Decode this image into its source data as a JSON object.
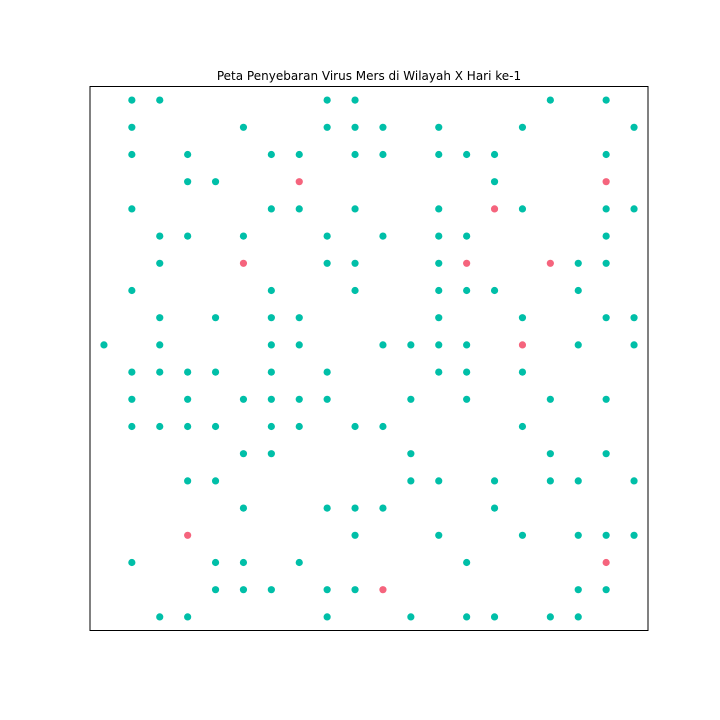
{
  "chart_data": {
    "type": "scatter",
    "title": "Peta Penyebaran Virus Mers di Wilayah X Hari ke-1",
    "xlabel": "",
    "ylabel": "",
    "xlim": [
      -0.5,
      19.5
    ],
    "ylim": [
      -0.5,
      19.5
    ],
    "axis_ticks": false,
    "grid": false,
    "colors": {
      "healthy": "#00bfa8",
      "infected": "#f5647d"
    },
    "series": [
      {
        "key": "healthy",
        "points": [
          [
            1,
            19
          ],
          [
            2,
            19
          ],
          [
            8,
            19
          ],
          [
            9,
            19
          ],
          [
            16,
            19
          ],
          [
            18,
            19
          ],
          [
            1,
            18
          ],
          [
            5,
            18
          ],
          [
            8,
            18
          ],
          [
            9,
            18
          ],
          [
            10,
            18
          ],
          [
            12,
            18
          ],
          [
            15,
            18
          ],
          [
            19,
            18
          ],
          [
            1,
            17
          ],
          [
            3,
            17
          ],
          [
            6,
            17
          ],
          [
            7,
            17
          ],
          [
            9,
            17
          ],
          [
            10,
            17
          ],
          [
            12,
            17
          ],
          [
            13,
            17
          ],
          [
            14,
            17
          ],
          [
            18,
            17
          ],
          [
            3,
            16
          ],
          [
            4,
            16
          ],
          [
            14,
            16
          ],
          [
            1,
            15
          ],
          [
            6,
            15
          ],
          [
            7,
            15
          ],
          [
            9,
            15
          ],
          [
            12,
            15
          ],
          [
            15,
            15
          ],
          [
            18,
            15
          ],
          [
            19,
            15
          ],
          [
            2,
            14
          ],
          [
            3,
            14
          ],
          [
            5,
            14
          ],
          [
            8,
            14
          ],
          [
            10,
            14
          ],
          [
            12,
            14
          ],
          [
            13,
            14
          ],
          [
            18,
            14
          ],
          [
            2,
            13
          ],
          [
            8,
            13
          ],
          [
            9,
            13
          ],
          [
            12,
            13
          ],
          [
            17,
            13
          ],
          [
            18,
            13
          ],
          [
            1,
            12
          ],
          [
            6,
            12
          ],
          [
            9,
            12
          ],
          [
            12,
            12
          ],
          [
            13,
            12
          ],
          [
            14,
            12
          ],
          [
            17,
            12
          ],
          [
            2,
            11
          ],
          [
            4,
            11
          ],
          [
            6,
            11
          ],
          [
            7,
            11
          ],
          [
            12,
            11
          ],
          [
            15,
            11
          ],
          [
            18,
            11
          ],
          [
            19,
            11
          ],
          [
            0,
            10
          ],
          [
            2,
            10
          ],
          [
            6,
            10
          ],
          [
            7,
            10
          ],
          [
            10,
            10
          ],
          [
            11,
            10
          ],
          [
            12,
            10
          ],
          [
            13,
            10
          ],
          [
            17,
            10
          ],
          [
            19,
            10
          ],
          [
            1,
            9
          ],
          [
            2,
            9
          ],
          [
            3,
            9
          ],
          [
            4,
            9
          ],
          [
            6,
            9
          ],
          [
            8,
            9
          ],
          [
            12,
            9
          ],
          [
            13,
            9
          ],
          [
            15,
            9
          ],
          [
            1,
            8
          ],
          [
            3,
            8
          ],
          [
            5,
            8
          ],
          [
            6,
            8
          ],
          [
            7,
            8
          ],
          [
            8,
            8
          ],
          [
            11,
            8
          ],
          [
            13,
            8
          ],
          [
            16,
            8
          ],
          [
            18,
            8
          ],
          [
            1,
            7
          ],
          [
            2,
            7
          ],
          [
            3,
            7
          ],
          [
            4,
            7
          ],
          [
            6,
            7
          ],
          [
            7,
            7
          ],
          [
            9,
            7
          ],
          [
            10,
            7
          ],
          [
            15,
            7
          ],
          [
            5,
            6
          ],
          [
            6,
            6
          ],
          [
            11,
            6
          ],
          [
            16,
            6
          ],
          [
            18,
            6
          ],
          [
            3,
            5
          ],
          [
            4,
            5
          ],
          [
            11,
            5
          ],
          [
            12,
            5
          ],
          [
            14,
            5
          ],
          [
            16,
            5
          ],
          [
            17,
            5
          ],
          [
            19,
            5
          ],
          [
            5,
            4
          ],
          [
            8,
            4
          ],
          [
            9,
            4
          ],
          [
            10,
            4
          ],
          [
            14,
            4
          ],
          [
            9,
            3
          ],
          [
            12,
            3
          ],
          [
            15,
            3
          ],
          [
            17,
            3
          ],
          [
            18,
            3
          ],
          [
            19,
            3
          ],
          [
            1,
            2
          ],
          [
            4,
            2
          ],
          [
            5,
            2
          ],
          [
            7,
            2
          ],
          [
            13,
            2
          ],
          [
            4,
            1
          ],
          [
            5,
            1
          ],
          [
            6,
            1
          ],
          [
            8,
            1
          ],
          [
            9,
            1
          ],
          [
            17,
            1
          ],
          [
            18,
            1
          ],
          [
            2,
            0
          ],
          [
            3,
            0
          ],
          [
            8,
            0
          ],
          [
            11,
            0
          ],
          [
            13,
            0
          ],
          [
            14,
            0
          ],
          [
            16,
            0
          ],
          [
            17,
            0
          ]
        ]
      },
      {
        "key": "infected",
        "points": [
          [
            7,
            16
          ],
          [
            18,
            16
          ],
          [
            14,
            15
          ],
          [
            5,
            13
          ],
          [
            13,
            13
          ],
          [
            16,
            13
          ],
          [
            15,
            10
          ],
          [
            3,
            3
          ],
          [
            18,
            2
          ],
          [
            10,
            1
          ]
        ]
      }
    ]
  }
}
